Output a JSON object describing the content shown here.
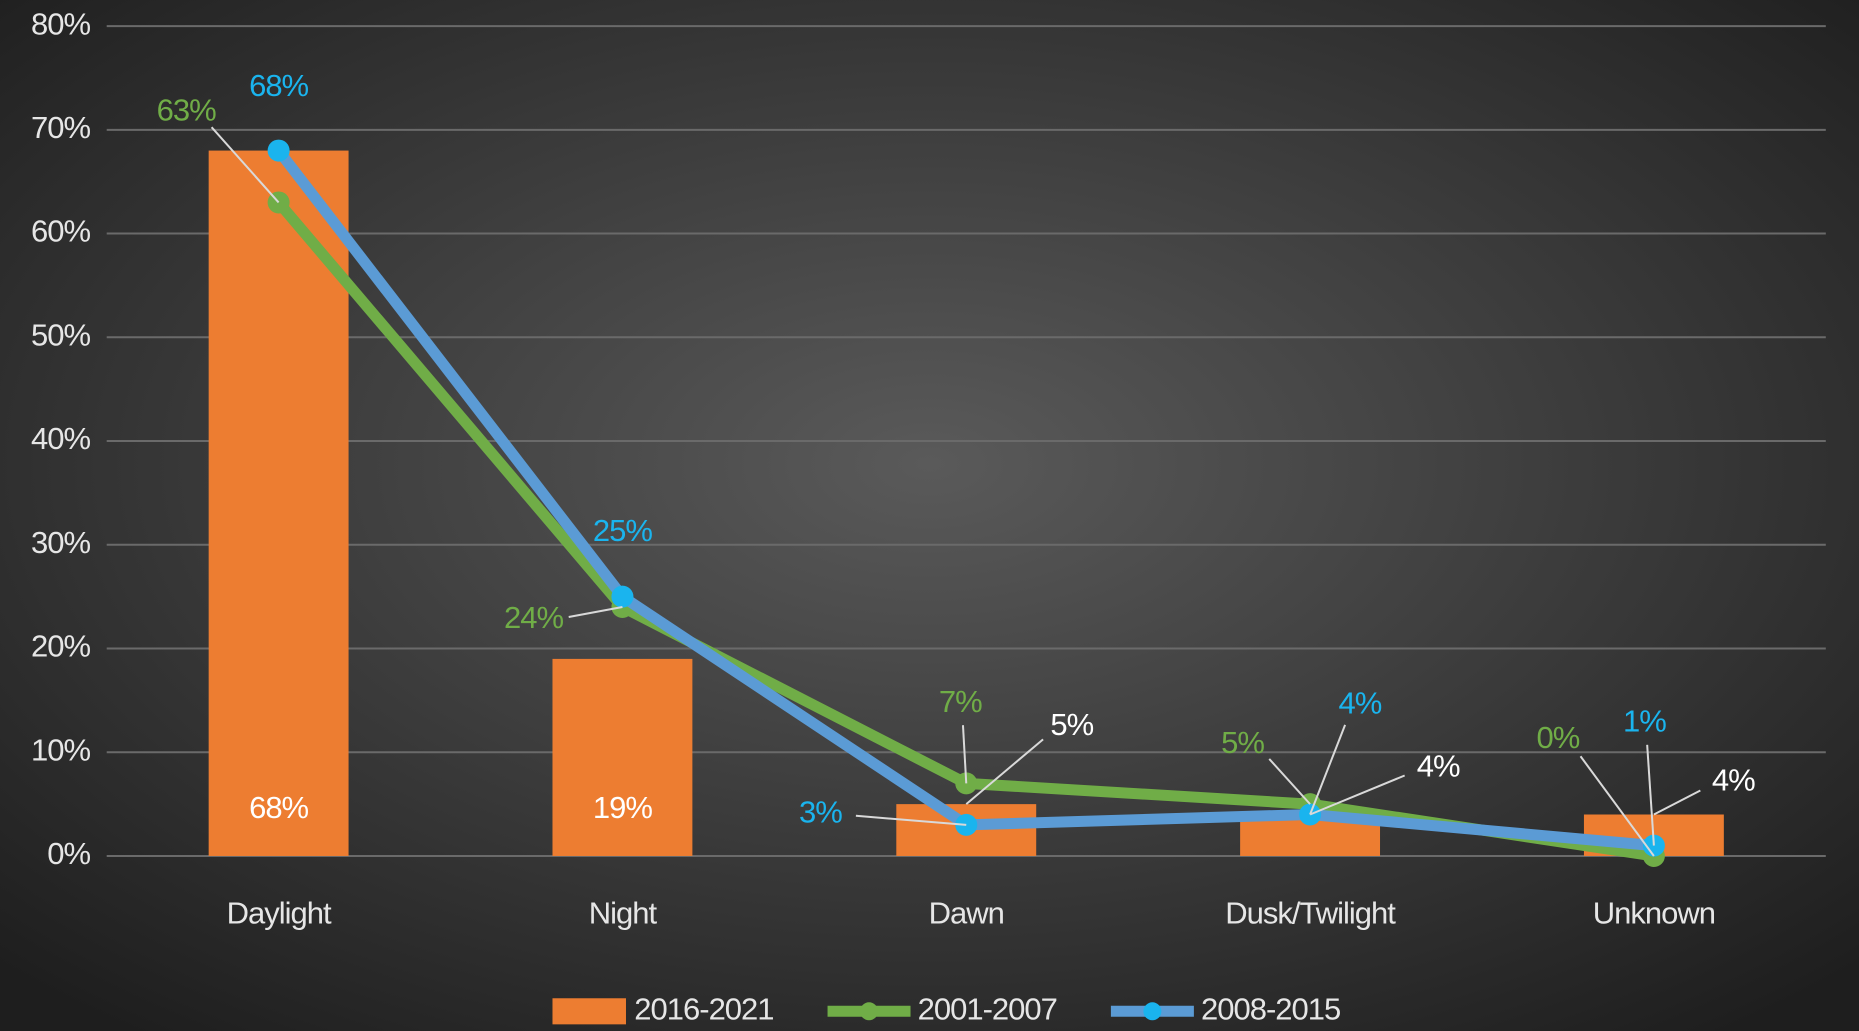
{
  "chart_data": {
    "type": "bar_line",
    "categories": [
      "Daylight",
      "Night",
      "Dawn",
      "Dusk/Twilight",
      "Unknown"
    ],
    "series": [
      {
        "name": "2016-2021",
        "type": "bar",
        "color": "#ed7d31",
        "label_color": "#ffffff",
        "values": [
          68,
          19,
          5,
          4,
          4
        ],
        "value_labels": [
          "68%",
          "19%",
          "5%",
          "4%",
          "4%"
        ]
      },
      {
        "name": "2001-2007",
        "type": "line",
        "color": "#70ad47",
        "marker_color": "#70ad47",
        "label_color": "#70ad47",
        "values": [
          63,
          24,
          7,
          5,
          0
        ],
        "value_labels": [
          "63%",
          "24%",
          "7%",
          "5%",
          "0%"
        ]
      },
      {
        "name": "2008-2015",
        "type": "line",
        "color": "#5b9bd5",
        "marker_color": "#1ab4ee",
        "label_color": "#1ab4ee",
        "values": [
          68,
          25,
          3,
          4,
          1
        ],
        "value_labels": [
          "68%",
          "25%",
          "3%",
          "4%",
          "1%"
        ]
      }
    ],
    "ylim": [
      0,
      80
    ],
    "yticks": [
      {
        "value": 0,
        "label": "0%"
      },
      {
        "value": 10,
        "label": "10%"
      },
      {
        "value": 20,
        "label": "20%"
      },
      {
        "value": 30,
        "label": "30%"
      },
      {
        "value": 40,
        "label": "40%"
      },
      {
        "value": 50,
        "label": "50%"
      },
      {
        "value": 60,
        "label": "60%"
      },
      {
        "value": 70,
        "label": "70%"
      },
      {
        "value": 80,
        "label": "80%"
      }
    ],
    "grid": true,
    "legend": "bottom"
  }
}
